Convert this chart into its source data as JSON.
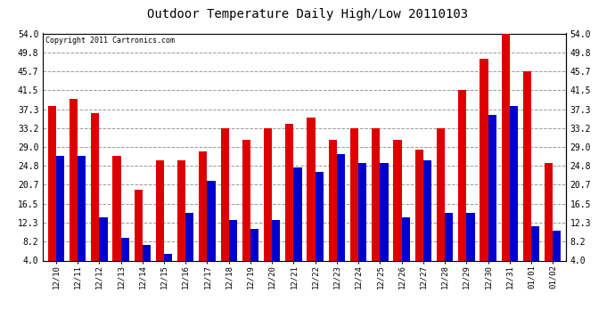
{
  "title": "Outdoor Temperature Daily High/Low 20110103",
  "copyright": "Copyright 2011 Cartronics.com",
  "categories": [
    "12/10",
    "12/11",
    "12/12",
    "12/13",
    "12/14",
    "12/15",
    "12/16",
    "12/17",
    "12/18",
    "12/19",
    "12/20",
    "12/21",
    "12/22",
    "12/23",
    "12/24",
    "12/25",
    "12/26",
    "12/27",
    "12/28",
    "12/29",
    "12/30",
    "12/31",
    "01/01",
    "01/02"
  ],
  "highs": [
    38.0,
    39.5,
    36.5,
    27.0,
    19.5,
    26.0,
    26.0,
    28.0,
    33.2,
    30.5,
    33.2,
    34.0,
    35.5,
    30.5,
    33.2,
    33.2,
    30.5,
    28.5,
    33.2,
    41.5,
    48.5,
    54.0,
    45.7,
    25.5
  ],
  "lows": [
    27.0,
    27.0,
    13.5,
    9.0,
    7.5,
    5.5,
    14.5,
    21.5,
    13.0,
    11.0,
    13.0,
    24.5,
    23.5,
    27.5,
    25.5,
    25.5,
    13.5,
    26.0,
    14.5,
    14.5,
    36.0,
    38.0,
    11.5,
    10.5
  ],
  "bar_color_high": "#dd0000",
  "bar_color_low": "#0000cc",
  "background_color": "#ffffff",
  "plot_bg_color": "#ffffff",
  "grid_color": "#999999",
  "yticks": [
    4.0,
    8.2,
    12.3,
    16.5,
    20.7,
    24.8,
    29.0,
    33.2,
    37.3,
    41.5,
    45.7,
    49.8,
    54.0
  ],
  "ymin": 4.0,
  "ymax": 54.0,
  "bar_width": 0.38
}
